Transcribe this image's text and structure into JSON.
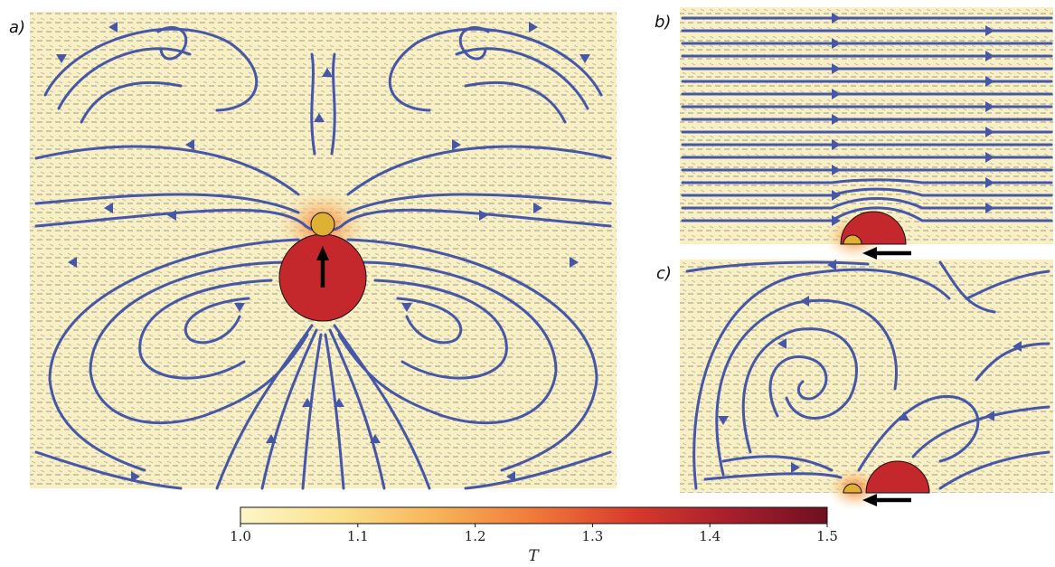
{
  "panels": [
    {
      "label": "a)"
    },
    {
      "label": "b)"
    },
    {
      "label": "c)"
    }
  ],
  "colorbar": {
    "title": "T",
    "min": 1.0,
    "max": 1.5,
    "ticks": [
      "1.0",
      "1.1",
      "1.2",
      "1.3",
      "1.4",
      "1.5"
    ],
    "colors": [
      "#fdf6c8",
      "#fbe08c",
      "#f7b55a",
      "#ef7a3a",
      "#d73a2c",
      "#a8202c",
      "#6e1020"
    ]
  },
  "colors": {
    "background": "#f8f0c4",
    "streamline": "#4657a8",
    "large_disc": "#c4272c",
    "small_disc": "#e0b032",
    "motion_arrow": "#000000"
  }
}
